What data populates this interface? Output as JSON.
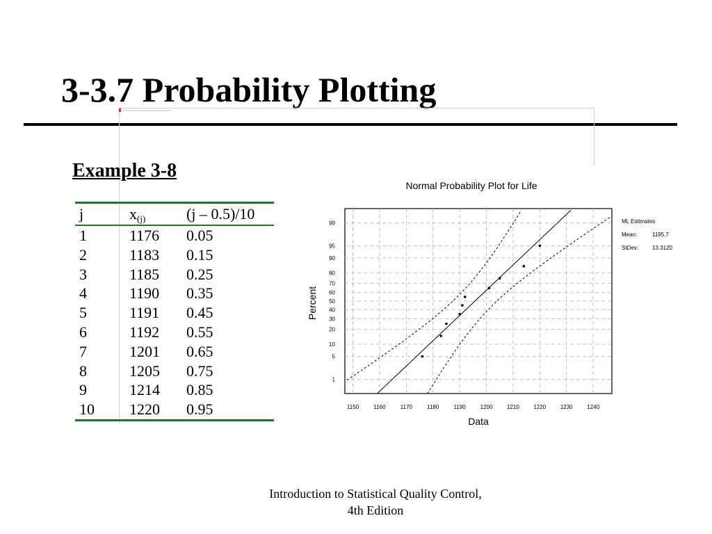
{
  "slide": {
    "title": "3-3.7 Probability Plotting",
    "subtitle": "Example 3-8",
    "footer_line1": "Introduction to Statistical Quality Control,",
    "footer_line2": "4th Edition"
  },
  "table": {
    "headers": {
      "j": "j",
      "x_main": "x",
      "x_sub": "(j)",
      "p": "(j – 0.5)/10"
    },
    "rows": [
      {
        "j": "1",
        "x": "1176",
        "p": "0.05"
      },
      {
        "j": "2",
        "x": "1183",
        "p": "0.15"
      },
      {
        "j": "3",
        "x": "1185",
        "p": "0.25"
      },
      {
        "j": "4",
        "x": "1190",
        "p": "0.35"
      },
      {
        "j": "5",
        "x": "1191",
        "p": "0.45"
      },
      {
        "j": "6",
        "x": "1192",
        "p": "0.55"
      },
      {
        "j": "7",
        "x": "1201",
        "p": "0.65"
      },
      {
        "j": "8",
        "x": "1205",
        "p": "0.75"
      },
      {
        "j": "9",
        "x": "1214",
        "p": "0.85"
      },
      {
        "j": "10",
        "x": "1220",
        "p": "0.95"
      }
    ],
    "rule_color": "#1e7a1e"
  },
  "chart_data": {
    "type": "scatter",
    "title": "Normal Probability Plot for Life",
    "xlabel": "Data",
    "ylabel": "Percent",
    "x_ticks": [
      1150,
      1160,
      1170,
      1180,
      1190,
      1200,
      1210,
      1220,
      1230,
      1240
    ],
    "y_ticks": [
      1,
      5,
      10,
      20,
      30,
      40,
      50,
      60,
      70,
      80,
      90,
      95,
      99
    ],
    "xlim": [
      1147,
      1247
    ],
    "ylim_percent": [
      0.3,
      99.7
    ],
    "y_scale": "normal-probability",
    "grid": true,
    "points": [
      {
        "x": 1176,
        "y": 5
      },
      {
        "x": 1183,
        "y": 15
      },
      {
        "x": 1185,
        "y": 25
      },
      {
        "x": 1190,
        "y": 35
      },
      {
        "x": 1191,
        "y": 45
      },
      {
        "x": 1192,
        "y": 55
      },
      {
        "x": 1201,
        "y": 65
      },
      {
        "x": 1205,
        "y": 75
      },
      {
        "x": 1214,
        "y": 85
      },
      {
        "x": 1220,
        "y": 95
      }
    ],
    "fit_line": {
      "mean": 1195.7,
      "stdev": 13.312
    },
    "legend": {
      "heading": "ML Estimates",
      "mean_label": "Mean:",
      "mean_value": "1195.7",
      "stdev_label": "StDev:",
      "stdev_value": "13.3120"
    }
  }
}
